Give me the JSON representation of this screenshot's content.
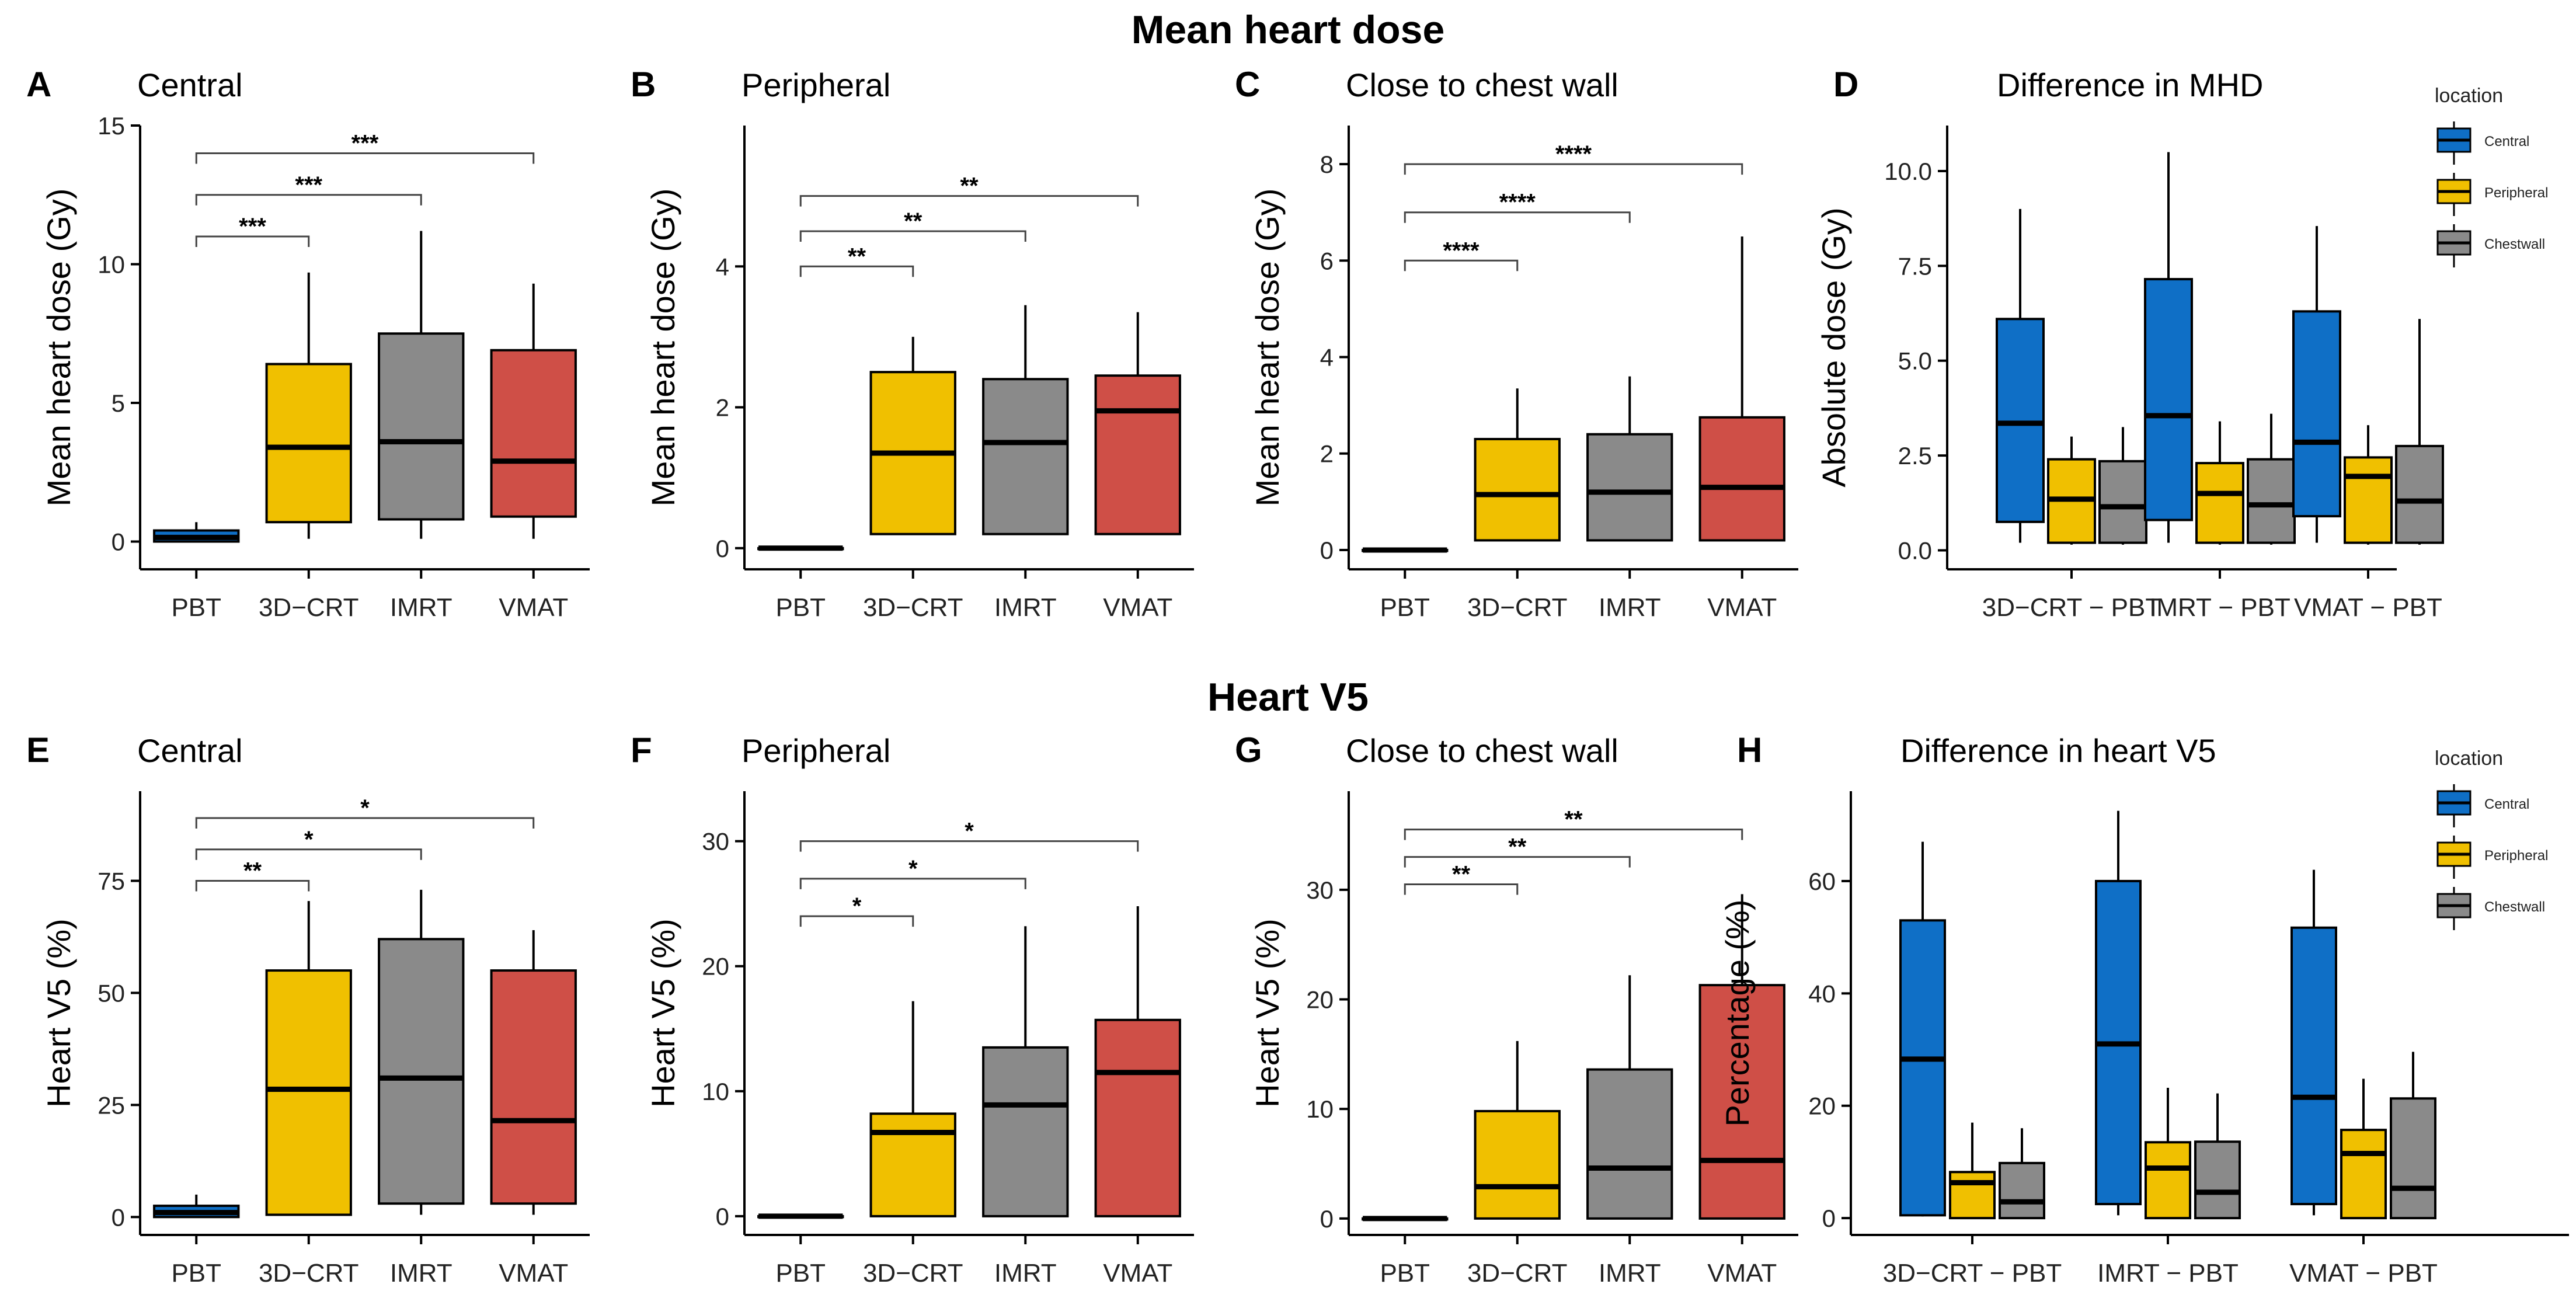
{
  "figure": {
    "titles": {
      "top": "Mean heart dose",
      "bottom": "Heart V5"
    },
    "colors": {
      "PBT": "#0f6fc6",
      "3D-CRT": "#f0c000",
      "IMRT": "#8a8a8a",
      "VMAT": "#cf4f47",
      "Central": "#0f6fc6",
      "Peripheral": "#f0c000",
      "Chestwall": "#8a8a8a"
    }
  },
  "chart_data": [
    {
      "id": "A",
      "letter": "A",
      "type": "box",
      "title": "Central",
      "ylabel": "Mean heart dose (Gy)",
      "xlabel": "",
      "ylim": [
        -1,
        15
      ],
      "yticks": [
        0,
        5,
        10,
        15
      ],
      "categories": [
        "PBT",
        "3D−CRT",
        "IMRT",
        "VMAT"
      ],
      "boxes": [
        {
          "label": "PBT",
          "color": "PBT",
          "whislo": 0.0,
          "q1": 0.0,
          "med": 0.15,
          "q3": 0.4,
          "whishi": 0.7
        },
        {
          "label": "3D−CRT",
          "color": "3D-CRT",
          "whislo": 0.1,
          "q1": 0.7,
          "med": 3.4,
          "q3": 6.4,
          "whishi": 9.7
        },
        {
          "label": "IMRT",
          "color": "IMRT",
          "whislo": 0.1,
          "q1": 0.8,
          "med": 3.6,
          "q3": 7.5,
          "whishi": 11.2
        },
        {
          "label": "VMAT",
          "color": "VMAT",
          "whislo": 0.1,
          "q1": 0.9,
          "med": 2.9,
          "q3": 6.9,
          "whishi": 9.3
        }
      ],
      "sig": [
        {
          "from": 0,
          "to": 1,
          "label": "***",
          "y": 11.0
        },
        {
          "from": 0,
          "to": 2,
          "label": "***",
          "y": 12.5
        },
        {
          "from": 0,
          "to": 3,
          "label": "***",
          "y": 14.0
        }
      ]
    },
    {
      "id": "B",
      "letter": "B",
      "type": "box",
      "title": "Peripheral",
      "ylabel": "Mean heart dose (Gy)",
      "xlabel": "",
      "ylim": [
        -0.3,
        6.0
      ],
      "yticks": [
        0,
        2,
        4
      ],
      "categories": [
        "PBT",
        "3D−CRT",
        "IMRT",
        "VMAT"
      ],
      "boxes": [
        {
          "label": "PBT",
          "color": "PBT",
          "whislo": 0.0,
          "q1": 0.0,
          "med": 0.0,
          "q3": 0.0,
          "whishi": 0.0
        },
        {
          "label": "3D−CRT",
          "color": "3D-CRT",
          "whislo": 0.2,
          "q1": 0.2,
          "med": 1.35,
          "q3": 2.5,
          "whishi": 3.0
        },
        {
          "label": "IMRT",
          "color": "IMRT",
          "whislo": 0.2,
          "q1": 0.2,
          "med": 1.5,
          "q3": 2.4,
          "whishi": 3.45
        },
        {
          "label": "VMAT",
          "color": "VMAT",
          "whislo": 0.2,
          "q1": 0.2,
          "med": 1.95,
          "q3": 2.45,
          "whishi": 3.35
        }
      ],
      "sig": [
        {
          "from": 0,
          "to": 1,
          "label": "**",
          "y": 4.0
        },
        {
          "from": 0,
          "to": 2,
          "label": "**",
          "y": 4.5
        },
        {
          "from": 0,
          "to": 3,
          "label": "**",
          "y": 5.0
        }
      ]
    },
    {
      "id": "C",
      "letter": "C",
      "type": "box",
      "title": "Close to chest wall",
      "ylabel": "Mean heart dose (Gy)",
      "xlabel": "",
      "ylim": [
        -0.4,
        8.8
      ],
      "yticks": [
        0,
        2,
        4,
        6,
        8
      ],
      "categories": [
        "PBT",
        "3D−CRT",
        "IMRT",
        "VMAT"
      ],
      "boxes": [
        {
          "label": "PBT",
          "color": "PBT",
          "whislo": 0.0,
          "q1": 0.0,
          "med": 0.0,
          "q3": 0.0,
          "whishi": 0.0
        },
        {
          "label": "3D−CRT",
          "color": "3D-CRT",
          "whislo": 0.2,
          "q1": 0.2,
          "med": 1.15,
          "q3": 2.3,
          "whishi": 3.35
        },
        {
          "label": "IMRT",
          "color": "IMRT",
          "whislo": 0.2,
          "q1": 0.2,
          "med": 1.2,
          "q3": 2.4,
          "whishi": 3.6
        },
        {
          "label": "VMAT",
          "color": "VMAT",
          "whislo": 0.2,
          "q1": 0.2,
          "med": 1.3,
          "q3": 2.75,
          "whishi": 6.5
        }
      ],
      "sig": [
        {
          "from": 0,
          "to": 1,
          "label": "****",
          "y": 6.0
        },
        {
          "from": 0,
          "to": 2,
          "label": "****",
          "y": 7.0
        },
        {
          "from": 0,
          "to": 3,
          "label": "****",
          "y": 8.0
        }
      ]
    },
    {
      "id": "D",
      "letter": "D",
      "type": "grouped_box",
      "title": "Difference in MHD",
      "ylabel": "Absolute dose (Gy)",
      "xlabel": "",
      "ylim": [
        -0.5,
        11.2
      ],
      "yticks": [
        "0.0",
        "2.5",
        "5.0",
        "7.5",
        "10.0"
      ],
      "categories": [
        "3D−CRT − PBT",
        "IMRT − PBT",
        "VMAT − PBT"
      ],
      "legend": {
        "title": "location",
        "entries": [
          "Central",
          "Peripheral",
          "Chestwall"
        ]
      },
      "groups": [
        {
          "label": "3D−CRT − PBT",
          "boxes": [
            {
              "name": "Central",
              "whislo": 0.2,
              "q1": 0.75,
              "med": 3.35,
              "q3": 6.1,
              "whishi": 9.0
            },
            {
              "name": "Peripheral",
              "whislo": 0.15,
              "q1": 0.2,
              "med": 1.35,
              "q3": 2.4,
              "whishi": 3.0
            },
            {
              "name": "Chestwall",
              "whislo": 0.15,
              "q1": 0.2,
              "med": 1.15,
              "q3": 2.35,
              "whishi": 3.25
            }
          ]
        },
        {
          "label": "IMRT − PBT",
          "boxes": [
            {
              "name": "Central",
              "whislo": 0.2,
              "q1": 0.8,
              "med": 3.55,
              "q3": 7.15,
              "whishi": 10.5
            },
            {
              "name": "Peripheral",
              "whislo": 0.15,
              "q1": 0.2,
              "med": 1.5,
              "q3": 2.3,
              "whishi": 3.4
            },
            {
              "name": "Chestwall",
              "whislo": 0.15,
              "q1": 0.2,
              "med": 1.2,
              "q3": 2.4,
              "whishi": 3.6
            }
          ]
        },
        {
          "label": "VMAT − PBT",
          "boxes": [
            {
              "name": "Central",
              "whislo": 0.2,
              "q1": 0.9,
              "med": 2.85,
              "q3": 6.3,
              "whishi": 8.55
            },
            {
              "name": "Peripheral",
              "whislo": 0.15,
              "q1": 0.2,
              "med": 1.95,
              "q3": 2.45,
              "whishi": 3.3
            },
            {
              "name": "Chestwall",
              "whislo": 0.15,
              "q1": 0.2,
              "med": 1.3,
              "q3": 2.75,
              "whishi": 6.1
            }
          ]
        }
      ]
    },
    {
      "id": "E",
      "letter": "E",
      "type": "box",
      "title": "Central",
      "ylabel": "Heart V5 (%)",
      "xlabel": "",
      "ylim": [
        -4,
        95
      ],
      "yticks": [
        0,
        25,
        50,
        75
      ],
      "categories": [
        "PBT",
        "3D−CRT",
        "IMRT",
        "VMAT"
      ],
      "boxes": [
        {
          "label": "PBT",
          "color": "PBT",
          "whislo": 0.0,
          "q1": 0.0,
          "med": 1.0,
          "q3": 2.5,
          "whishi": 5.0
        },
        {
          "label": "3D−CRT",
          "color": "3D-CRT",
          "whislo": 0.5,
          "q1": 0.5,
          "med": 28.5,
          "q3": 55.0,
          "whishi": 70.5
        },
        {
          "label": "IMRT",
          "color": "IMRT",
          "whislo": 0.5,
          "q1": 3.0,
          "med": 31.0,
          "q3": 62.0,
          "whishi": 73.0
        },
        {
          "label": "VMAT",
          "color": "VMAT",
          "whislo": 0.5,
          "q1": 3.0,
          "med": 21.5,
          "q3": 55.0,
          "whishi": 64.0
        }
      ],
      "sig": [
        {
          "from": 0,
          "to": 1,
          "label": "**",
          "y": 75.0
        },
        {
          "from": 0,
          "to": 2,
          "label": "*",
          "y": 82.0
        },
        {
          "from": 0,
          "to": 3,
          "label": "*",
          "y": 89.0
        }
      ]
    },
    {
      "id": "F",
      "letter": "F",
      "type": "box",
      "title": "Peripheral",
      "ylabel": "Heart V5 (%)",
      "xlabel": "",
      "ylim": [
        -1.5,
        34
      ],
      "yticks": [
        0,
        10,
        20,
        30
      ],
      "categories": [
        "PBT",
        "3D−CRT",
        "IMRT",
        "VMAT"
      ],
      "boxes": [
        {
          "label": "PBT",
          "color": "PBT",
          "whislo": 0.0,
          "q1": 0.0,
          "med": 0.0,
          "q3": 0.0,
          "whishi": 0.0
        },
        {
          "label": "3D−CRT",
          "color": "3D-CRT",
          "whislo": 0.0,
          "q1": 0.0,
          "med": 6.7,
          "q3": 8.2,
          "whishi": 17.2
        },
        {
          "label": "IMRT",
          "color": "IMRT",
          "whislo": 0.0,
          "q1": 0.0,
          "med": 8.9,
          "q3": 13.5,
          "whishi": 23.2
        },
        {
          "label": "VMAT",
          "color": "VMAT",
          "whislo": 0.0,
          "q1": 0.0,
          "med": 11.5,
          "q3": 15.7,
          "whishi": 24.8
        }
      ],
      "sig": [
        {
          "from": 0,
          "to": 1,
          "label": "*",
          "y": 24.0
        },
        {
          "from": 0,
          "to": 2,
          "label": "*",
          "y": 27.0
        },
        {
          "from": 0,
          "to": 3,
          "label": "*",
          "y": 30.0
        }
      ]
    },
    {
      "id": "G",
      "letter": "G",
      "type": "box",
      "title": "Close to chest wall",
      "ylabel": "Heart V5 (%)",
      "xlabel": "",
      "ylim": [
        -1.5,
        39
      ],
      "yticks": [
        0,
        10,
        20,
        30
      ],
      "categories": [
        "PBT",
        "3D−CRT",
        "IMRT",
        "VMAT"
      ],
      "boxes": [
        {
          "label": "PBT",
          "color": "PBT",
          "whislo": 0.0,
          "q1": 0.0,
          "med": 0.0,
          "q3": 0.0,
          "whishi": 0.0
        },
        {
          "label": "3D−CRT",
          "color": "3D-CRT",
          "whislo": 0.0,
          "q1": 0.0,
          "med": 2.9,
          "q3": 9.8,
          "whishi": 16.2
        },
        {
          "label": "IMRT",
          "color": "IMRT",
          "whislo": 0.0,
          "q1": 0.0,
          "med": 4.6,
          "q3": 13.6,
          "whishi": 22.2
        },
        {
          "label": "VMAT",
          "color": "VMAT",
          "whislo": 0.0,
          "q1": 0.0,
          "med": 5.3,
          "q3": 21.3,
          "whishi": 29.6
        }
      ],
      "sig": [
        {
          "from": 0,
          "to": 1,
          "label": "**",
          "y": 30.5
        },
        {
          "from": 0,
          "to": 2,
          "label": "**",
          "y": 33.0
        },
        {
          "from": 0,
          "to": 3,
          "label": "**",
          "y": 35.5
        }
      ]
    },
    {
      "id": "H",
      "letter": "H",
      "type": "grouped_box",
      "title": "Difference in heart V5",
      "ylabel": "Percentage (%)",
      "xlabel": "",
      "ylim": [
        -3,
        76
      ],
      "yticks": [
        0,
        20,
        40,
        60
      ],
      "categories": [
        "3D−CRT − PBT",
        "IMRT − PBT",
        "VMAT − PBT"
      ],
      "legend": {
        "title": "location",
        "entries": [
          "Central",
          "Peripheral",
          "Chestwall"
        ]
      },
      "groups": [
        {
          "label": "3D−CRT − PBT",
          "boxes": [
            {
              "name": "Central",
              "whislo": 0.3,
              "q1": 0.5,
              "med": 28.3,
              "q3": 53.0,
              "whishi": 67.0
            },
            {
              "name": "Peripheral",
              "whislo": 0.0,
              "q1": 0.0,
              "med": 6.3,
              "q3": 8.2,
              "whishi": 17.0
            },
            {
              "name": "Chestwall",
              "whislo": 0.0,
              "q1": 0.0,
              "med": 2.9,
              "q3": 9.8,
              "whishi": 16.0
            }
          ]
        },
        {
          "label": "IMRT − PBT",
          "boxes": [
            {
              "name": "Central",
              "whislo": 0.5,
              "q1": 2.5,
              "med": 31.0,
              "q3": 60.0,
              "whishi": 72.5
            },
            {
              "name": "Peripheral",
              "whislo": 0.0,
              "q1": 0.0,
              "med": 8.9,
              "q3": 13.5,
              "whishi": 23.2
            },
            {
              "name": "Chestwall",
              "whislo": 0.0,
              "q1": 0.0,
              "med": 4.6,
              "q3": 13.6,
              "whishi": 22.2
            }
          ]
        },
        {
          "label": "VMAT − PBT",
          "boxes": [
            {
              "name": "Central",
              "whislo": 0.5,
              "q1": 2.5,
              "med": 21.5,
              "q3": 51.7,
              "whishi": 62.0
            },
            {
              "name": "Peripheral",
              "whislo": 0.0,
              "q1": 0.0,
              "med": 11.5,
              "q3": 15.7,
              "whishi": 24.8
            },
            {
              "name": "Chestwall",
              "whislo": 0.0,
              "q1": 0.0,
              "med": 5.3,
              "q3": 21.3,
              "whishi": 29.6
            }
          ]
        }
      ]
    }
  ]
}
